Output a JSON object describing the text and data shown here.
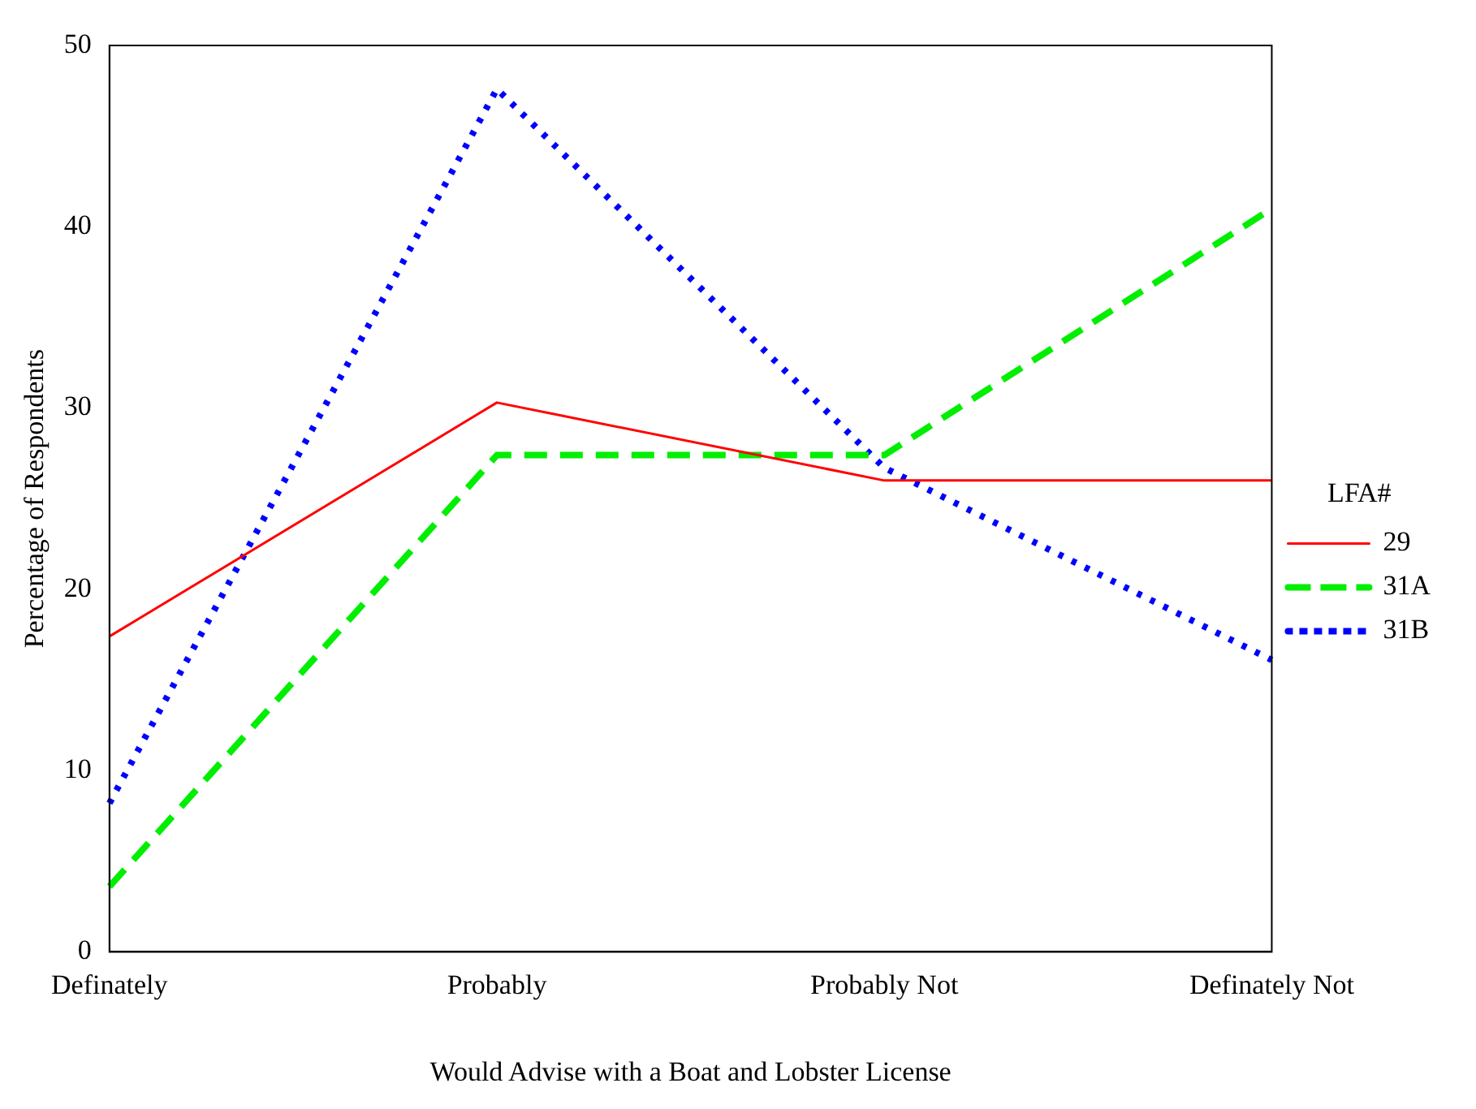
{
  "chart_data": {
    "type": "line",
    "xlabel": "Would Advise with a Boat and Lobster License",
    "ylabel": "Percentage of Respondents",
    "legend_title": "LFA#",
    "categories": [
      "Definately",
      "Probably",
      "Probably Not",
      "Definately Not"
    ],
    "series": [
      {
        "name": "29",
        "color": "#ff0000",
        "line_style": "solid",
        "values": [
          17.4,
          30.3,
          26.0,
          26.0
        ]
      },
      {
        "name": "31A",
        "color": "#00ee00",
        "line_style": "dashed",
        "values": [
          3.6,
          27.4,
          27.4,
          41.0
        ]
      },
      {
        "name": "31B",
        "color": "#0000ff",
        "line_style": "dotted",
        "values": [
          8.2,
          47.6,
          26.7,
          16.1
        ]
      }
    ],
    "ylim": [
      0,
      50
    ],
    "yticks": [
      0,
      10,
      20,
      30,
      40,
      50
    ],
    "grid": false,
    "legend": "right",
    "marker": "none"
  }
}
